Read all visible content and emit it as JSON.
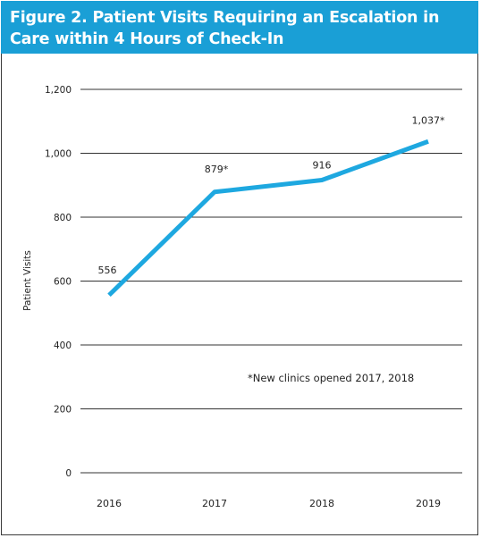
{
  "title": "Figure 2. Patient Visits Requiring an Escalation in Care within 4 Hours of Check-In",
  "chart_data": {
    "type": "line",
    "title": "Figure 2. Patient Visits Requiring an Escalation in Care within 4 Hours of Check-In",
    "xlabel": "",
    "ylabel": "Patient Visits",
    "categories": [
      "2016",
      "2017",
      "2018",
      "2019"
    ],
    "series": [
      {
        "values": [
          556,
          879,
          916,
          1037
        ],
        "color": "#1ea8e0"
      }
    ],
    "data_labels": [
      "556",
      "879*",
      "916",
      "1,037*"
    ],
    "yticks": [
      0,
      200,
      400,
      600,
      800,
      1000,
      1200
    ],
    "ytick_labels": [
      "0",
      "200",
      "400",
      "600",
      "800",
      "1,000",
      "1,200"
    ],
    "ylim": [
      0,
      1200
    ],
    "grid": true,
    "legend": "none",
    "annotation": "*New clinics opened 2017, 2018"
  }
}
